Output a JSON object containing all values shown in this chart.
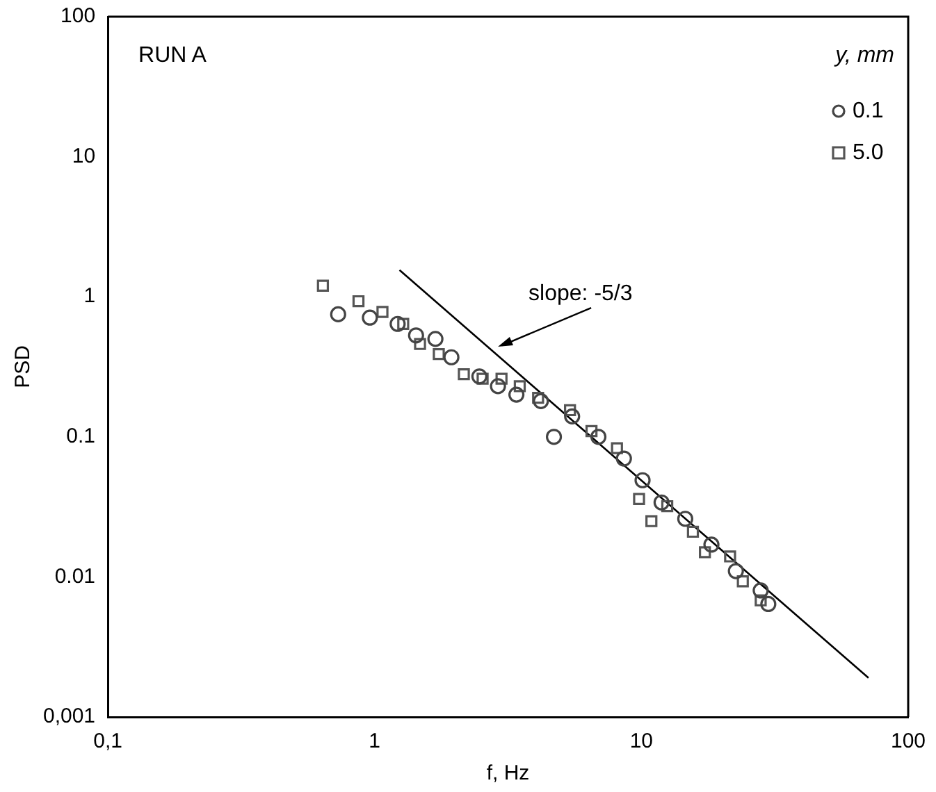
{
  "chart_data": {
    "type": "scatter",
    "xlabel": "f, Hz",
    "ylabel": "PSD",
    "legend_title": "y, mm",
    "log": "xy",
    "grid": false,
    "legend": "top right",
    "xlim": [
      0.1,
      100
    ],
    "xticks": [
      {
        "value": 0.1,
        "label": "0,1"
      },
      1,
      10,
      100
    ],
    "ylim": [
      0.001,
      100
    ],
    "yticks": [
      {
        "value": 0.001,
        "label": "0,001"
      },
      0.01,
      0.1,
      1,
      10,
      100
    ],
    "annotations": [
      "RUN A",
      {
        "text": "slope: -5/3",
        "x": 2.9,
        "y": 0.44
      }
    ],
    "series": [
      {
        "name": "0.1",
        "marker": "circle",
        "color": "#444444",
        "x": [
          0.73,
          0.96,
          1.22,
          1.43,
          1.69,
          1.94,
          2.47,
          2.9,
          3.4,
          4.2,
          4.7,
          5.5,
          6.9,
          8.6,
          10.1,
          11.9,
          14.6,
          18.3,
          22.6,
          28,
          29.9
        ],
        "values": [
          0.75,
          0.71,
          0.64,
          0.53,
          0.5,
          0.37,
          0.27,
          0.23,
          0.2,
          0.18,
          0.1,
          0.14,
          0.1,
          0.07,
          0.049,
          0.034,
          0.026,
          0.017,
          0.011,
          0.008,
          0.0064
        ]
      },
      {
        "name": "5.0",
        "marker": "square",
        "color": "#555555",
        "x": [
          0.64,
          0.87,
          1.07,
          1.28,
          1.48,
          1.74,
          2.16,
          2.54,
          2.99,
          3.5,
          4.1,
          5.4,
          6.5,
          8.1,
          9.8,
          10.9,
          12.5,
          15.6,
          17.3,
          21.5,
          24,
          28
        ],
        "values": [
          1.2,
          0.93,
          0.78,
          0.64,
          0.46,
          0.39,
          0.28,
          0.26,
          0.26,
          0.23,
          0.19,
          0.155,
          0.11,
          0.083,
          0.036,
          0.025,
          0.032,
          0.021,
          0.015,
          0.014,
          0.0093,
          0.0068
        ]
      },
      {
        "type": "line",
        "marker": "none",
        "line_style": "solid",
        "color": "#000000",
        "x": [
          1.24,
          71
        ],
        "values": [
          1.55,
          0.0019
        ]
      }
    ]
  }
}
